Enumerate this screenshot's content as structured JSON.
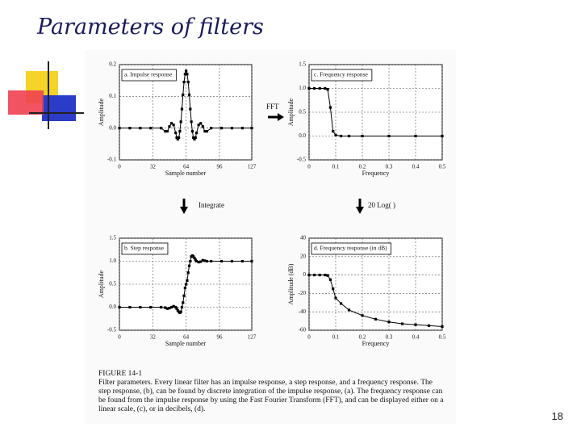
{
  "title": "Parameters of filters",
  "page_number": "18",
  "annotations": [
    "FFT",
    "Integrate",
    "20 Log( )"
  ],
  "caption": {
    "heading": "FIGURE 14-1",
    "text": "Filter parameters. Every linear filter has an impulse response, a step response, and a frequency response. The step response, (b), can be found by discrete integration of the impulse response, (a). The frequency response can be found from the impulse response by using the Fast Fourier Transform (FFT), and can be displayed either on a linear scale, (c), or in decibels, (d)."
  },
  "chart_data": [
    {
      "type": "line",
      "title": "a.  Impulse response",
      "xlabel": "Sample number",
      "ylabel": "Amplitude",
      "color": "#000000",
      "markers": true,
      "grid": true,
      "x": [
        0,
        10,
        20,
        30,
        40,
        44,
        46,
        48,
        50,
        52,
        54,
        55,
        56,
        57,
        58,
        59,
        60,
        61,
        62,
        63,
        64,
        65,
        66,
        67,
        68,
        69,
        70,
        71,
        72,
        73,
        74,
        76,
        78,
        80,
        82,
        84,
        88,
        98,
        108,
        118,
        127
      ],
      "values": [
        0,
        0,
        0,
        0,
        0,
        -0.01,
        -0.01,
        0.005,
        0.015,
        0.01,
        -0.015,
        -0.03,
        -0.035,
        -0.03,
        -0.01,
        0.02,
        0.06,
        0.105,
        0.145,
        0.17,
        0.18,
        0.17,
        0.145,
        0.105,
        0.06,
        0.02,
        -0.01,
        -0.03,
        -0.035,
        -0.03,
        -0.015,
        0.01,
        0.015,
        0.005,
        -0.01,
        -0.01,
        0,
        0,
        0,
        0,
        0
      ],
      "xlim": [
        0,
        127
      ],
      "xticks": [
        0,
        32,
        64,
        96,
        127
      ],
      "ylim": [
        -0.1,
        0.2
      ],
      "yticks": [
        -0.1,
        {
          "value": 0,
          "label": "0.0"
        },
        0.1,
        0.2
      ]
    },
    {
      "type": "line",
      "title": "c.  Frequency response",
      "xlabel": "Frequency",
      "ylabel": "Amplitude",
      "color": "#000000",
      "markers": true,
      "grid": true,
      "x": [
        0,
        0.02,
        0.04,
        0.06,
        0.07,
        0.08,
        0.09,
        0.1,
        0.12,
        0.15,
        0.2,
        0.3,
        0.4,
        0.5
      ],
      "values": [
        1,
        1,
        1,
        1,
        0.98,
        0.6,
        0.1,
        0.02,
        0,
        0,
        0,
        0,
        0,
        0
      ],
      "xlim": [
        0,
        0.5
      ],
      "xticks": [
        0,
        0.1,
        0.2,
        0.3,
        0.4,
        0.5
      ],
      "ylim": [
        -0.5,
        1.5
      ],
      "yticks": [
        -0.5,
        {
          "value": 0,
          "label": "0.0"
        },
        0.5,
        {
          "value": 1,
          "label": "1.0"
        },
        1.5
      ]
    },
    {
      "type": "line",
      "title": "b.  Step response",
      "xlabel": "Sample number",
      "ylabel": "Amplitude",
      "color": "#000000",
      "markers": true,
      "grid": true,
      "x": [
        0,
        10,
        20,
        30,
        40,
        44,
        46,
        48,
        50,
        52,
        54,
        55,
        56,
        57,
        58,
        59,
        60,
        61,
        62,
        63,
        64,
        65,
        66,
        67,
        68,
        69,
        70,
        71,
        72,
        73,
        74,
        76,
        78,
        80,
        82,
        84,
        88,
        98,
        108,
        118,
        127
      ],
      "values": [
        0,
        0,
        0,
        0,
        0,
        -0.01,
        -0.03,
        -0.02,
        0,
        0.02,
        0,
        -0.03,
        -0.07,
        -0.1,
        -0.12,
        -0.1,
        0,
        0.1,
        0.25,
        0.42,
        0.5,
        0.58,
        0.75,
        0.9,
        1,
        1.1,
        1.12,
        1.1,
        1.07,
        1.03,
        1,
        0.98,
        0.99,
        1.02,
        1.01,
        1,
        1,
        1,
        1,
        1,
        1
      ],
      "xlim": [
        0,
        127
      ],
      "xticks": [
        0,
        32,
        64,
        96,
        127
      ],
      "ylim": [
        -0.5,
        1.5
      ],
      "yticks": [
        -0.5,
        {
          "value": 0,
          "label": "0.0"
        },
        0.5,
        {
          "value": 1,
          "label": "1.0"
        },
        1.5
      ]
    },
    {
      "type": "line",
      "title": "d.  Frequency response (in dB)",
      "xlabel": "Frequency",
      "ylabel": "Amplitude (dB)",
      "color": "#000000",
      "markers": true,
      "grid": true,
      "x": [
        0,
        0.02,
        0.04,
        0.06,
        0.07,
        0.08,
        0.09,
        0.1,
        0.12,
        0.15,
        0.2,
        0.25,
        0.3,
        0.35,
        0.4,
        0.45,
        0.5
      ],
      "values": [
        0,
        0,
        0,
        0,
        -0.5,
        -5,
        -15,
        -25,
        -31,
        -38,
        -44,
        -48,
        -51,
        -53,
        -54,
        -55,
        -56
      ],
      "xlim": [
        0,
        0.5
      ],
      "xticks": [
        0,
        0.1,
        0.2,
        0.3,
        0.4,
        0.5
      ],
      "ylim": [
        -60,
        40
      ],
      "yticks": [
        -60,
        -40,
        -20,
        0,
        20,
        40
      ]
    }
  ]
}
